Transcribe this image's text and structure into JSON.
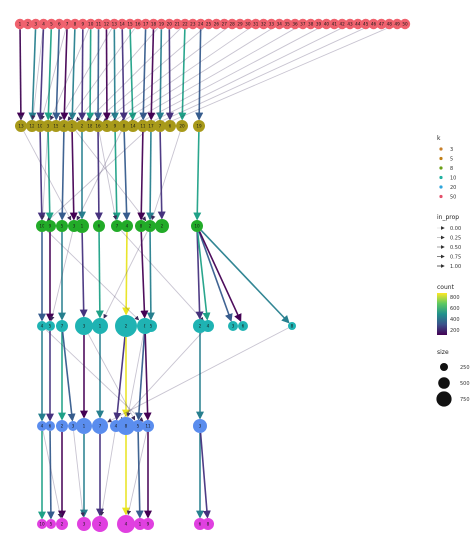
{
  "chart_data": {
    "type": "clustering-tree",
    "levels": [
      {
        "k": "50",
        "color": "#f0626e",
        "labels": [
          "1",
          "2",
          "3",
          "4",
          "5",
          "6",
          "7",
          "8",
          "9",
          "10",
          "11",
          "12",
          "13",
          "14",
          "15",
          "16",
          "17",
          "18",
          "19",
          "20",
          "21",
          "22",
          "23",
          "24",
          "25",
          "26",
          "27",
          "28",
          "29",
          "30",
          "31",
          "32",
          "33",
          "34",
          "35",
          "36",
          "37",
          "38",
          "39",
          "40",
          "41",
          "42",
          "43",
          "44",
          "45",
          "46",
          "47",
          "48",
          "49",
          "50"
        ]
      },
      {
        "k": "20",
        "color": "#a89a1a",
        "labels": [
          "13",
          "12",
          "10",
          "3",
          "15",
          "4",
          "1",
          "2",
          "18",
          "16",
          "5",
          "9",
          "8",
          "14",
          "11",
          "17",
          "7",
          "6",
          "20",
          "19"
        ]
      },
      {
        "k": "10",
        "color": "#22ab28",
        "labels": [
          "10",
          "9",
          "5",
          "3",
          "1",
          "6",
          "7",
          "4",
          "8",
          "2",
          "2",
          "10"
        ]
      },
      {
        "k": "8",
        "color": "#1fb3b3",
        "labels": [
          "4",
          "5",
          "7",
          "3",
          "1",
          "2",
          "8",
          "5",
          "2",
          "4",
          "3",
          "6",
          "8"
        ]
      },
      {
        "k": "5",
        "color": "#5a8dee",
        "labels": [
          "4",
          "6",
          "2",
          "3",
          "1",
          "7",
          "4",
          "8",
          "5",
          "11",
          "3"
        ]
      },
      {
        "k": "3",
        "color": "#e040e0",
        "labels": [
          "10",
          "5",
          "2",
          "3",
          "2",
          "4",
          "1",
          "9",
          "6",
          "8"
        ]
      }
    ],
    "legend": {
      "k": {
        "title": "k",
        "items": [
          "3",
          "5",
          "8",
          "10",
          "20",
          "50"
        ],
        "colors": [
          "#c87f2b",
          "#c07f16",
          "#6a9f16",
          "#20b0a0",
          "#2ea5dc",
          "#e4506a"
        ]
      },
      "in_prop": {
        "title": "in_prop",
        "items": [
          "0.00",
          "0.25",
          "0.50",
          "0.75",
          "1.00"
        ]
      },
      "count": {
        "title": "count",
        "ticks": [
          "800",
          "600",
          "400",
          "200"
        ],
        "gradient": [
          "#440154",
          "#3b528b",
          "#21918c",
          "#5ec962",
          "#fde725"
        ]
      },
      "size": {
        "title": "size",
        "items": [
          "250",
          "500",
          "750"
        ]
      }
    }
  }
}
